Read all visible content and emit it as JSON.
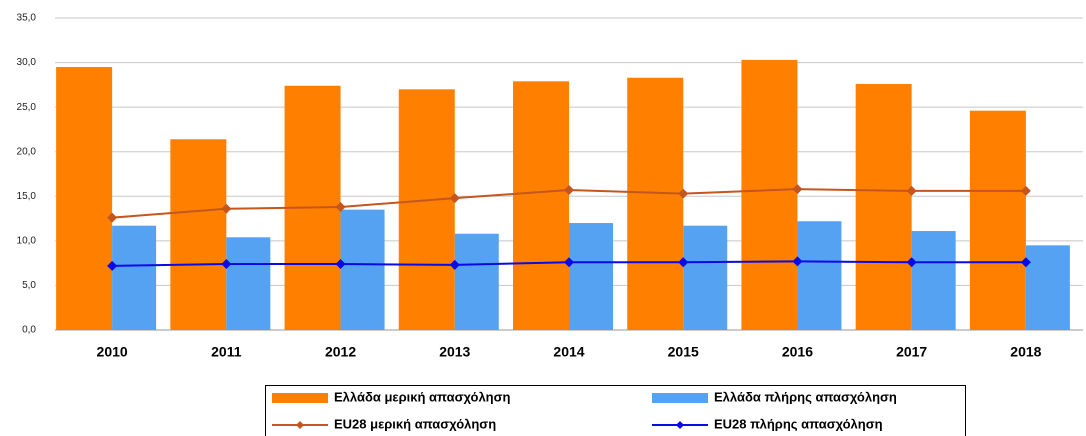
{
  "chart_data": {
    "type": "bar",
    "categories": [
      "2010",
      "2011",
      "2012",
      "2013",
      "2014",
      "2015",
      "2016",
      "2017",
      "2018"
    ],
    "series": [
      {
        "name": "Ελλάδα μερική απασχόληση",
        "type": "bar",
        "color": "#ff8000",
        "values": [
          29.5,
          21.4,
          27.4,
          27.0,
          27.9,
          28.3,
          30.3,
          27.6,
          24.6
        ]
      },
      {
        "name": "Ελλάδα πλήρης απασχόληση",
        "type": "bar",
        "color": "#55a2f2",
        "values": [
          11.7,
          10.4,
          13.5,
          10.8,
          12.0,
          11.7,
          12.2,
          11.1,
          9.5
        ]
      },
      {
        "name": "EU28 μερική απασχόληση",
        "type": "line",
        "color": "#c4561e",
        "values": [
          12.6,
          13.6,
          13.8,
          14.8,
          15.7,
          15.3,
          15.8,
          15.6,
          15.6
        ]
      },
      {
        "name": "EU28 πλήρης απασχόληση",
        "type": "line",
        "color": "#0a0ae6",
        "values": [
          7.2,
          7.4,
          7.4,
          7.3,
          7.6,
          7.6,
          7.7,
          7.6,
          7.6
        ]
      }
    ],
    "ylim": [
      0,
      35
    ],
    "yticks": [
      {
        "value": 0,
        "label": "0,0"
      },
      {
        "value": 5,
        "label": "5,0"
      },
      {
        "value": 10,
        "label": "10,0"
      },
      {
        "value": 15,
        "label": "15,0"
      },
      {
        "value": 20,
        "label": "20,0"
      },
      {
        "value": 25,
        "label": "25,0"
      },
      {
        "value": 30,
        "label": "30,0"
      },
      {
        "value": 35,
        "label": "35,0"
      }
    ],
    "grid": true,
    "legend": "bottom"
  }
}
